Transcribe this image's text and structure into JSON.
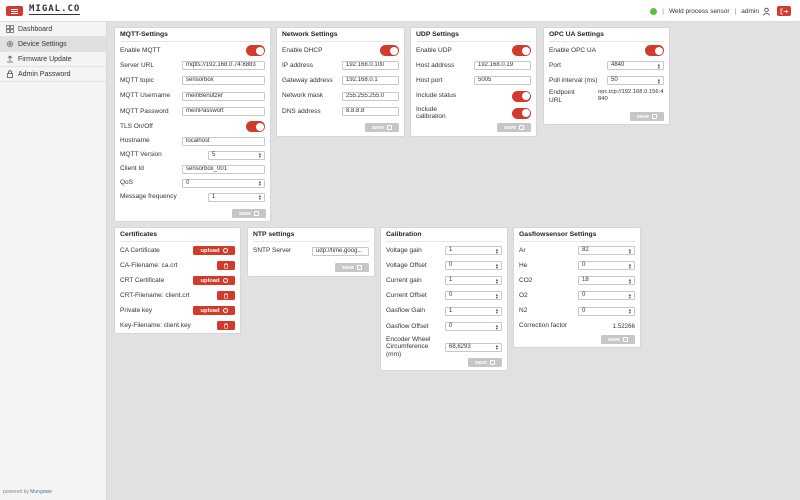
{
  "header": {
    "brand": "MIGAL.CO",
    "device_name": "Weld process sensor",
    "user": "admin",
    "separator": "|"
  },
  "sidebar": {
    "items": [
      {
        "label": "Dashboard",
        "icon": "grid-icon"
      },
      {
        "label": "Device Settings",
        "icon": "gear-icon"
      },
      {
        "label": "Firmware Update",
        "icon": "upload-icon"
      },
      {
        "label": "Admin Password",
        "icon": "lock-icon"
      }
    ],
    "footer_prefix": "powered by",
    "footer_link": "Mungowe"
  },
  "common": {
    "save_label": "save",
    "upload_label": "upload"
  },
  "mqtt": {
    "title": "MQTT-Settings",
    "enable_label": "Enable MQTT",
    "server_url_label": "Server URL",
    "server_url": "mqtts://192.168.0.74:8883",
    "topic_label": "MQTT topic",
    "topic": "sensorbox",
    "username_label": "MQTT Username",
    "username": "meinBenutzer",
    "password_label": "MQTT Password",
    "password": "meinPasswort",
    "tls_label": "TLS On/Off",
    "hostname_label": "Hostname",
    "hostname": "localhost",
    "version_label": "MQTT Version",
    "version": "5",
    "client_id_label": "Client Id",
    "client_id": "sensorbox_001",
    "qos_label": "QoS",
    "qos": "0",
    "frequency_label": "Message frequency",
    "frequency": "1"
  },
  "network": {
    "title": "Network Settings",
    "dhcp_label": "Enable DHCP",
    "ip_label": "IP address",
    "ip": "192.168.0.100",
    "gateway_label": "Gateway address",
    "gateway": "192.168.0.1",
    "mask_label": "Network mask",
    "mask": "255.255.255.0",
    "dns_label": "DNS address",
    "dns": "8.8.8.8"
  },
  "udp": {
    "title": "UDP Settings",
    "enable_label": "Enable UDP",
    "host_label": "Host address",
    "host": "192.168.0.19",
    "port_label": "Host port",
    "port": "5005",
    "status_label": "Include status",
    "calib_label": "Include calibration"
  },
  "opcua": {
    "title": "OPC UA Settings",
    "enable_label": "Enable OPC UA",
    "port_label": "Port",
    "port": "4840",
    "poll_label": "Poll interval (ms)",
    "poll": "50",
    "endpoint_label": "Endpoint URL",
    "endpoint": "opc.tcp://192.168.0.156:4840"
  },
  "certs": {
    "title": "Certificates",
    "ca_label": "CA Certificate",
    "ca_file_label": "CA-Filename: ca.crt",
    "crt_label": "CRT Certificate",
    "crt_file_label": "CRT-Filename: client.crt",
    "key_label": "Private key",
    "key_file_label": "Key-Filename: client.key"
  },
  "ntp": {
    "title": "NTP settings",
    "server_label": "SNTP Server",
    "server": "udp://time.goog..."
  },
  "calibration": {
    "title": "Calibration",
    "rows": [
      {
        "label": "Voltage gain",
        "value": "1"
      },
      {
        "label": "Voltage Offset",
        "value": "0"
      },
      {
        "label": "Current gain",
        "value": "1"
      },
      {
        "label": "Current Offset",
        "value": "0"
      },
      {
        "label": "Gasflow Gain",
        "value": "1"
      },
      {
        "label": "Gasflow Offset",
        "value": "0"
      }
    ],
    "encoder_label": "Encoder Wheel Circumference (mm)",
    "encoder": "68,6293"
  },
  "gasflow": {
    "title": "Gasflowsensor Settings",
    "rows": [
      {
        "label": "Ar",
        "value": "82"
      },
      {
        "label": "He",
        "value": "0"
      },
      {
        "label": "CO2",
        "value": "18"
      },
      {
        "label": "O2",
        "value": "0"
      },
      {
        "label": "N2",
        "value": "0"
      }
    ],
    "correction_label": "Correction factor",
    "correction": "1.52266"
  },
  "colors": {
    "accent": "#d23a2c",
    "status_ok": "#5cbf4a",
    "disabled": "#c6c6c6"
  }
}
